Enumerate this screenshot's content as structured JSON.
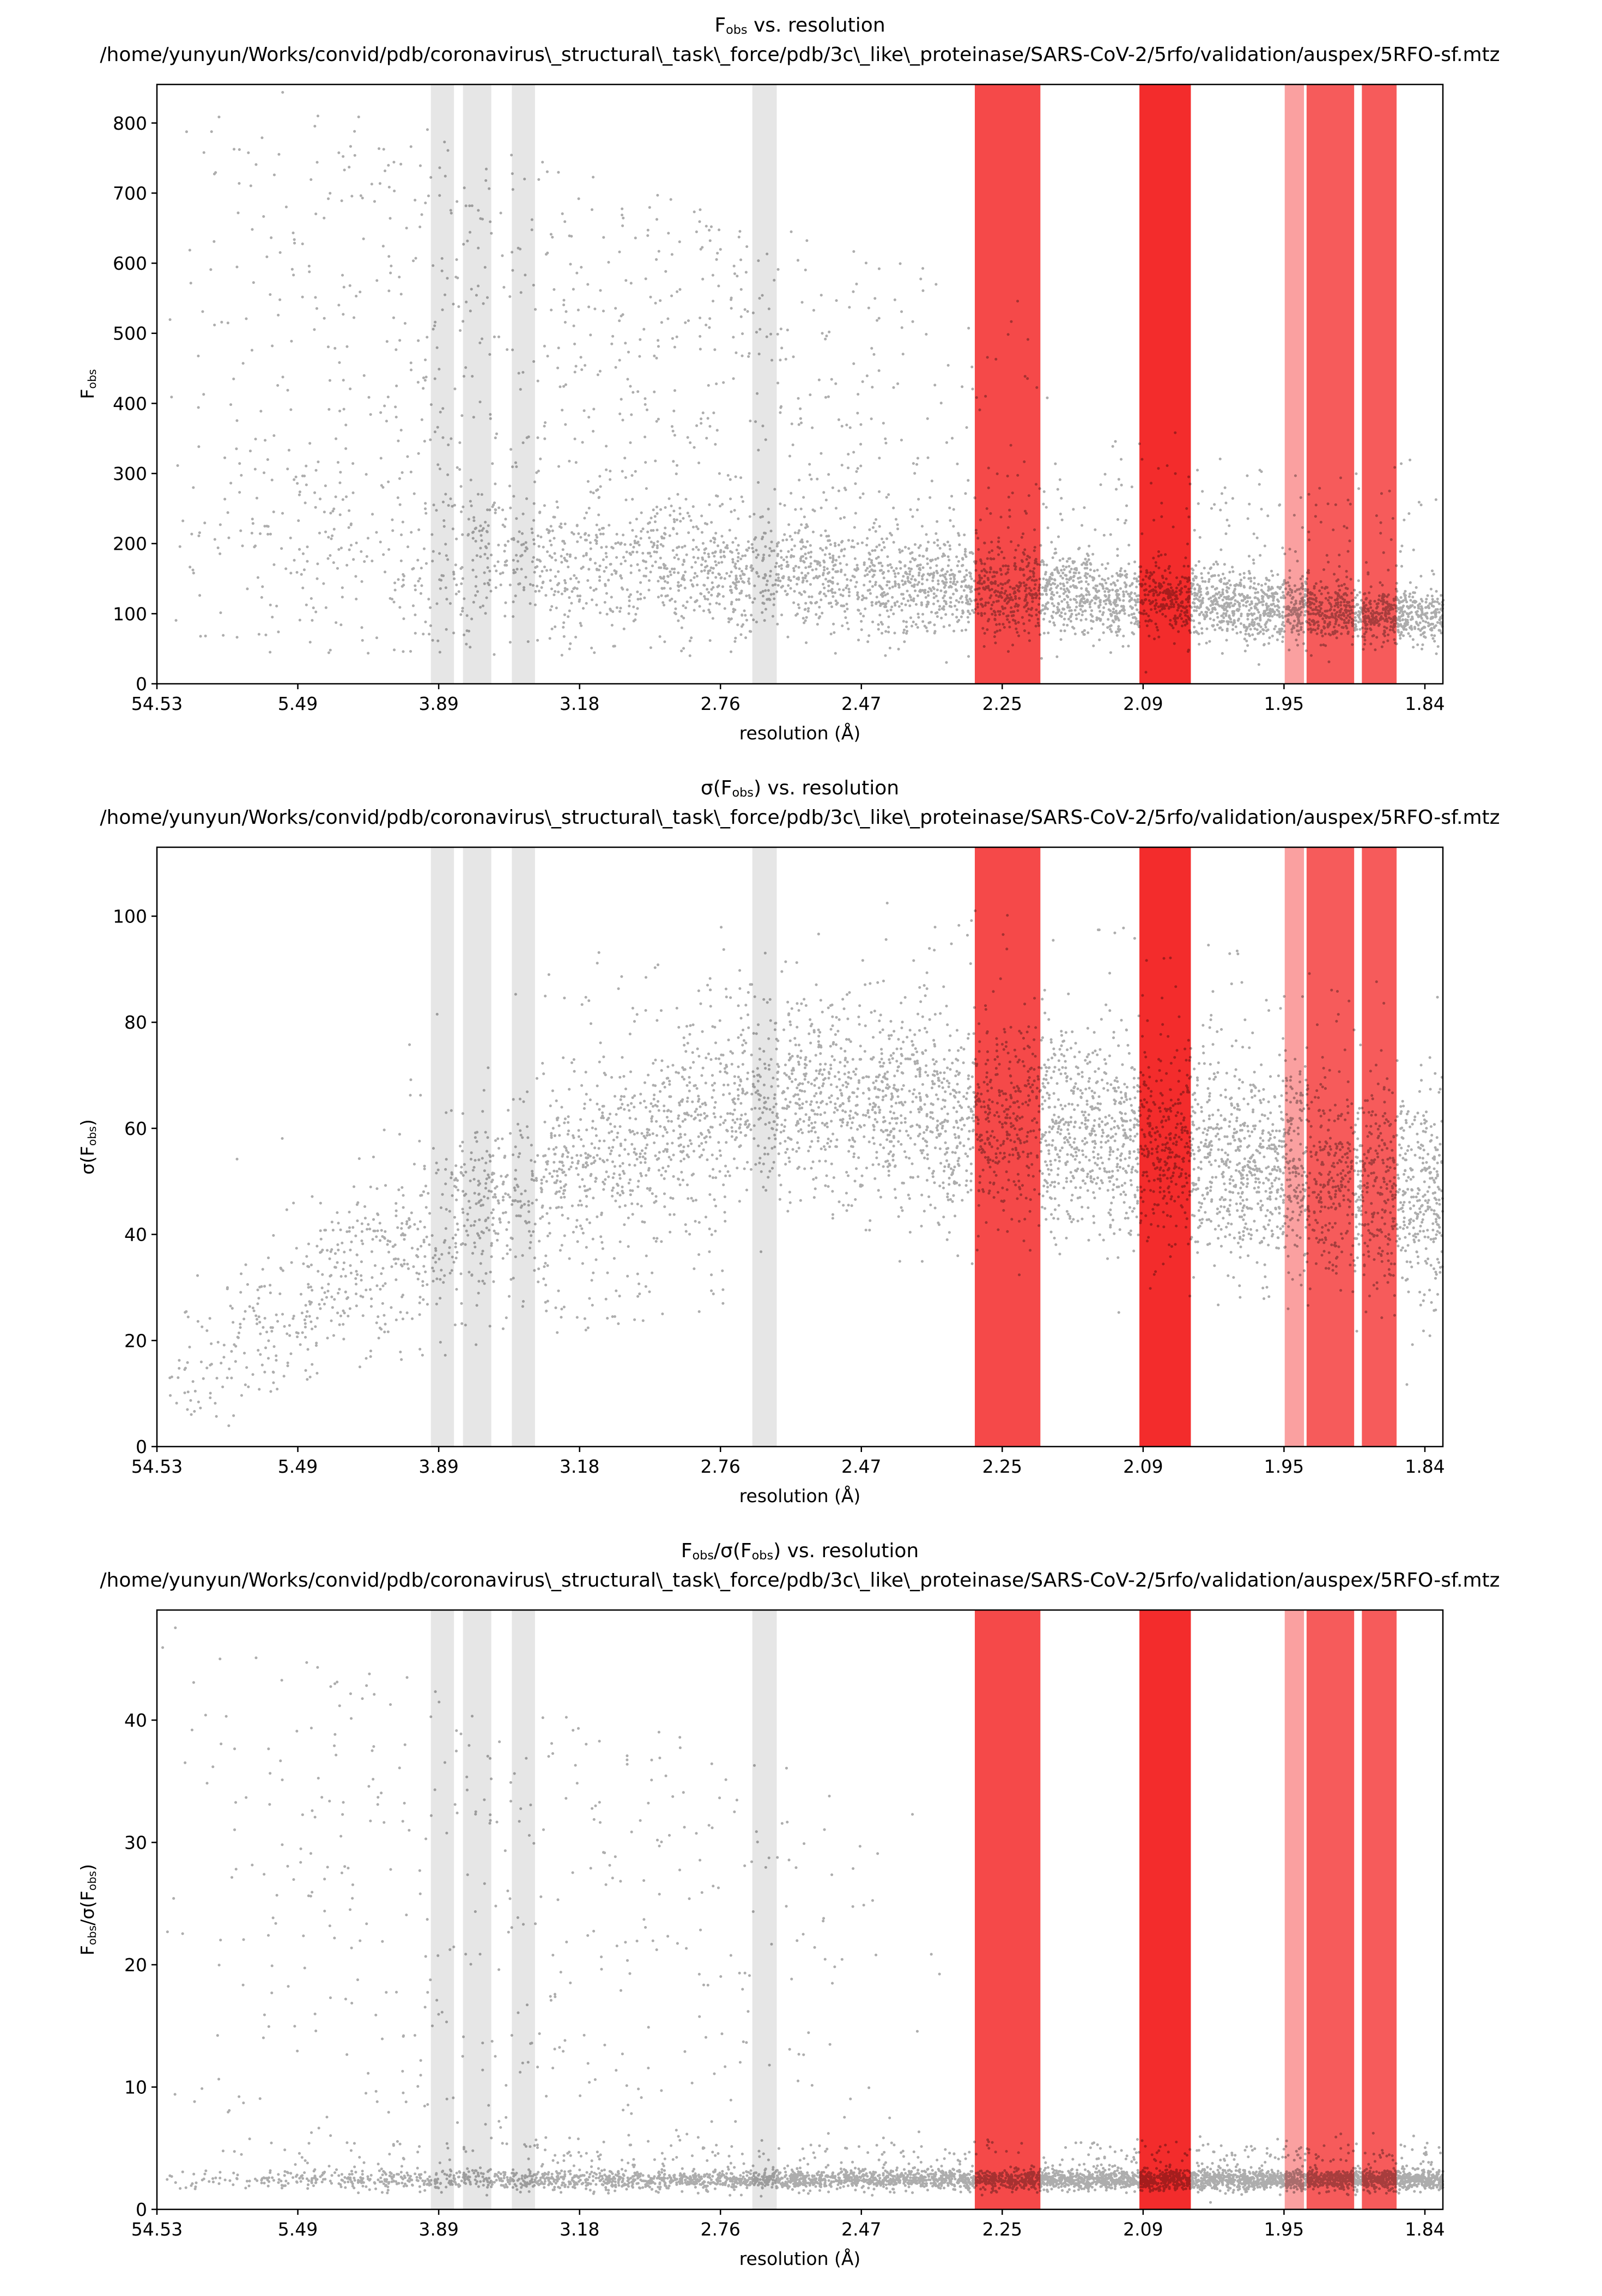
{
  "chart_data": [
    {
      "type": "scatter",
      "title_main": "F",
      "title_sub": "obs",
      "title_rest": " vs. resolution",
      "path": "/home/yunyun/Works/convid/pdb/coronavirus\\_structural\\_task\\_force/pdb/3c\\_like\\_proteinase/SARS-CoV-2/5rfo/validation/auspex/5RFO-sf.mtz",
      "xlabel": "resolution (Å)",
      "ylabel_main": "F",
      "ylabel_sub": "obs",
      "ylabel_rest": "",
      "x_tick_labels": [
        "54.53",
        "5.49",
        "3.89",
        "3.18",
        "2.76",
        "2.47",
        "2.25",
        "2.09",
        "1.95",
        "1.84"
      ],
      "y_ticks": [
        0,
        100,
        200,
        300,
        400,
        500,
        600,
        700,
        800
      ],
      "ylim": [
        0,
        855
      ],
      "profile": {
        "mode": "fobs",
        "low_res_spread": [
          40,
          900
        ],
        "trend_start": 210,
        "trend_end": 95
      }
    },
    {
      "type": "scatter",
      "title_main": "σ(F",
      "title_sub": "obs",
      "title_rest": ") vs. resolution",
      "path": "/home/yunyun/Works/convid/pdb/coronavirus\\_structural\\_task\\_force/pdb/3c\\_like\\_proteinase/SARS-CoV-2/5rfo/validation/auspex/5RFO-sf.mtz",
      "xlabel": "resolution (Å)",
      "ylabel_main": "σ(F",
      "ylabel_sub": "obs",
      "ylabel_rest": ")",
      "x_tick_labels": [
        "54.53",
        "5.49",
        "3.89",
        "3.18",
        "2.76",
        "2.47",
        "2.25",
        "2.09",
        "1.95",
        "1.84"
      ],
      "y_ticks": [
        0,
        20,
        40,
        60,
        80,
        100
      ],
      "ylim": [
        0,
        113
      ],
      "profile": {
        "mode": "sigma",
        "start": 6,
        "mid": 66,
        "end": 45
      }
    },
    {
      "type": "scatter",
      "title_main": "F",
      "title_sub": "obs",
      "title_rest": "/σ(F",
      "title_sub2": "obs",
      "title_rest2": ") vs. resolution",
      "path": "/home/yunyun/Works/convid/pdb/coronavirus\\_structural\\_task\\_force/pdb/3c\\_like\\_proteinase/SARS-CoV-2/5rfo/validation/auspex/5RFO-sf.mtz",
      "xlabel": "resolution (Å)",
      "ylabel_main": "F",
      "ylabel_sub": "obs",
      "ylabel_rest": "/σ(F",
      "ylabel_sub2": "obs",
      "ylabel_rest2": ")",
      "x_tick_labels": [
        "54.53",
        "5.49",
        "3.89",
        "3.18",
        "2.76",
        "2.47",
        "2.25",
        "2.09",
        "1.95",
        "1.84"
      ],
      "y_ticks": [
        0,
        10,
        20,
        30,
        40
      ],
      "ylim": [
        0,
        49
      ],
      "profile": {
        "mode": "ratio",
        "floor": 1.3,
        "band": 2.5
      }
    }
  ],
  "bands": {
    "gray": [
      {
        "from": 0.213,
        "to": 0.231
      },
      {
        "from": 0.238,
        "to": 0.26
      },
      {
        "from": 0.276,
        "to": 0.294
      },
      {
        "from": 0.463,
        "to": 0.482
      }
    ],
    "red": [
      {
        "from": 0.636,
        "to": 0.687,
        "opacity": 0.8
      },
      {
        "from": 0.764,
        "to": 0.804,
        "opacity": 0.93
      },
      {
        "from": 0.877,
        "to": 0.892,
        "opacity": 0.42
      },
      {
        "from": 0.894,
        "to": 0.931,
        "opacity": 0.72
      },
      {
        "from": 0.937,
        "to": 0.964,
        "opacity": 0.72
      }
    ]
  },
  "colors": {
    "points": "#000000",
    "gray_band": "#e6e6e6",
    "red_band": "#f21c1c"
  }
}
